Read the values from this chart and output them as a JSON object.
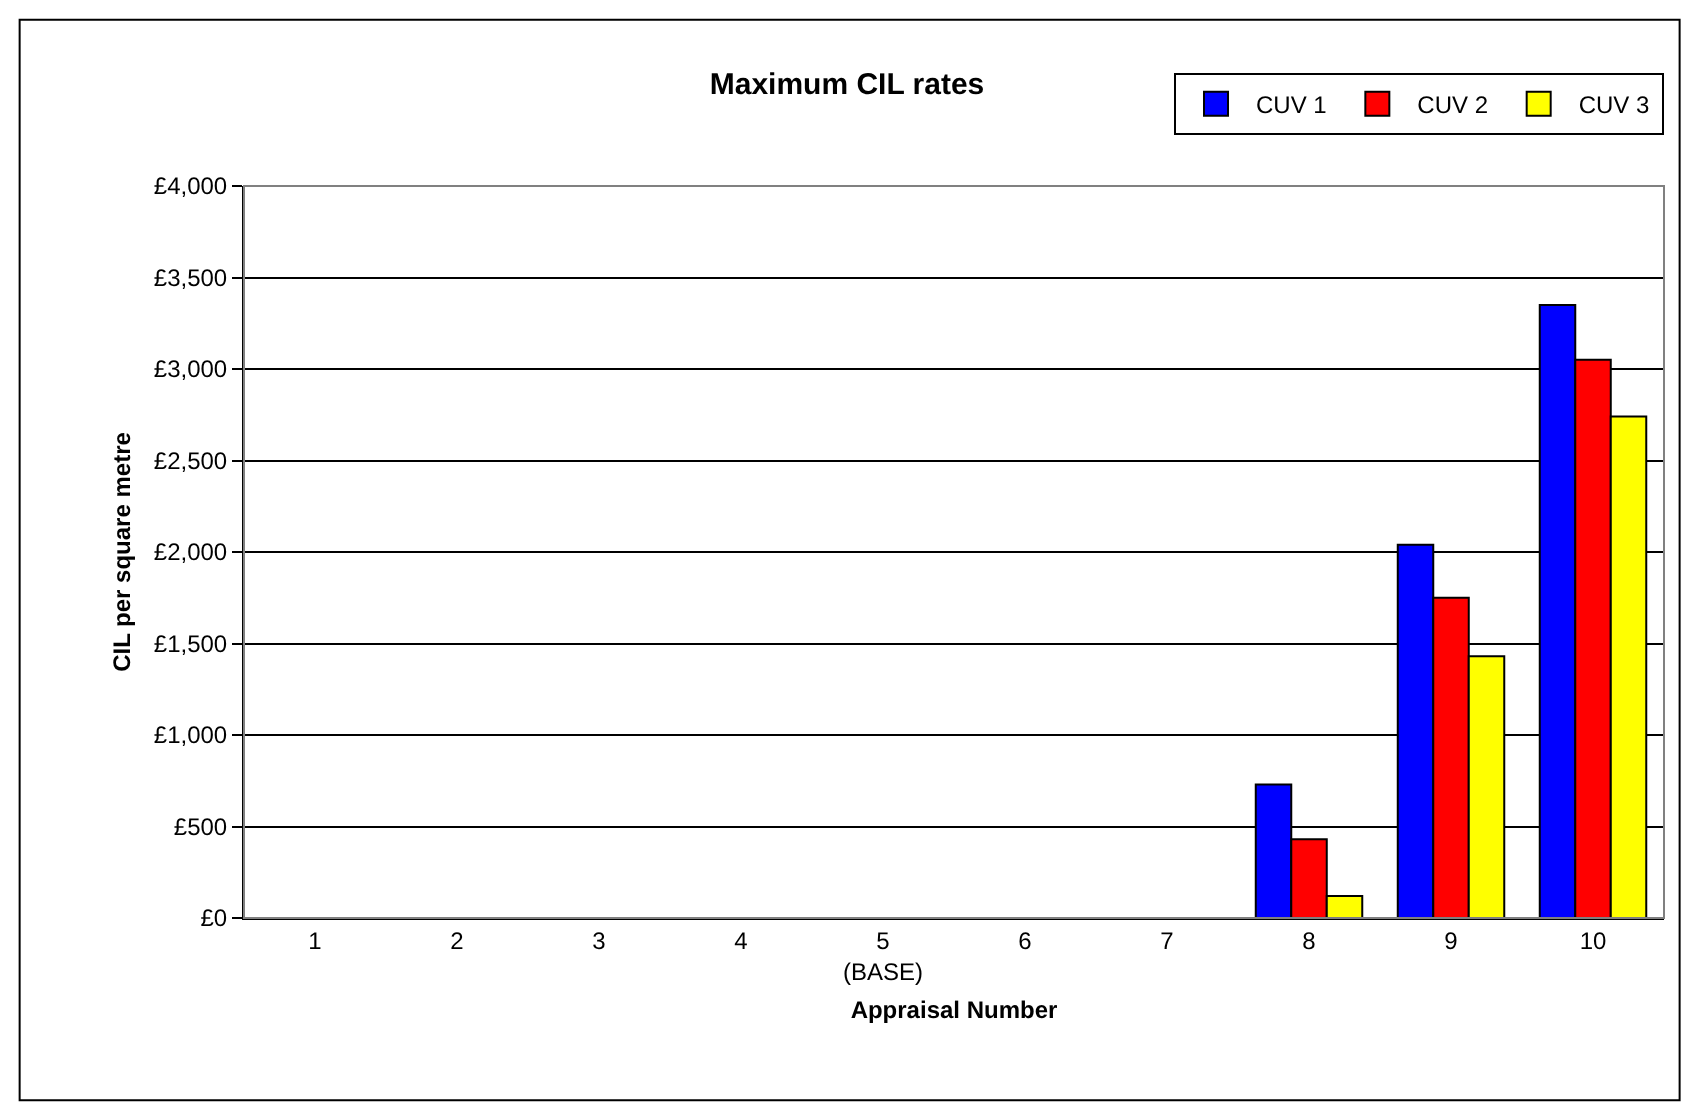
{
  "chart_data": {
    "type": "bar",
    "title": "Maximum CIL rates",
    "xlabel": "Appraisal Number",
    "ylabel": "CIL per square metre",
    "categories": [
      "1",
      "2",
      "3",
      "4",
      "5\n(BASE)",
      "6",
      "7",
      "8",
      "9",
      "10"
    ],
    "series": [
      {
        "name": "CUV 1",
        "color": "#0000ff",
        "values": [
          null,
          null,
          null,
          null,
          null,
          null,
          null,
          730,
          2040,
          3350
        ]
      },
      {
        "name": "CUV 2",
        "color": "#ff0000",
        "values": [
          null,
          null,
          null,
          null,
          null,
          null,
          null,
          430,
          1750,
          3050
        ]
      },
      {
        "name": "CUV 3",
        "color": "#ffff00",
        "values": [
          null,
          null,
          null,
          null,
          null,
          null,
          null,
          120,
          1430,
          2740
        ]
      }
    ],
    "ylim": [
      0,
      4000
    ],
    "yticks": [
      {
        "value": 0,
        "label": "£0"
      },
      {
        "value": 500,
        "label": "£500"
      },
      {
        "value": 1000,
        "label": "£1,000"
      },
      {
        "value": 1500,
        "label": "£1,500"
      },
      {
        "value": 2000,
        "label": "£2,000"
      },
      {
        "value": 2500,
        "label": "£2,500"
      },
      {
        "value": 3000,
        "label": "£3,000"
      },
      {
        "value": 3500,
        "label": "£3,500"
      },
      {
        "value": 4000,
        "label": "£4,000"
      }
    ],
    "grid": "y",
    "legend": "top right"
  }
}
